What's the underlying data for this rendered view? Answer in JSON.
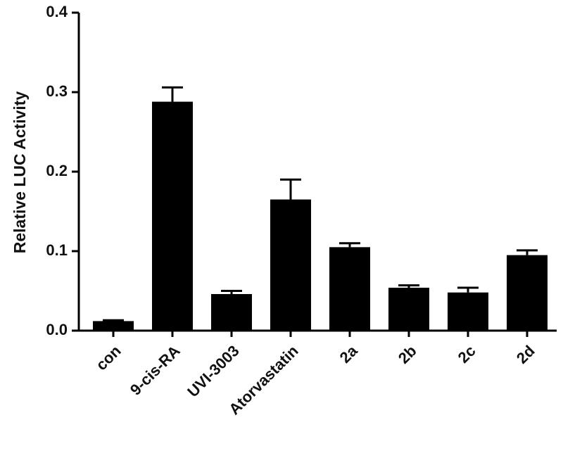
{
  "chart_data": {
    "type": "bar",
    "y_label": "Relative LUC Activity",
    "categories": [
      "con",
      "9-cis-RA",
      "UVI-3003",
      "Atorvastatin",
      "2a",
      "2b",
      "2c",
      "2d"
    ],
    "values": [
      0.012,
      0.288,
      0.046,
      0.165,
      0.105,
      0.054,
      0.048,
      0.095
    ],
    "errors": [
      0.001,
      0.018,
      0.004,
      0.025,
      0.005,
      0.003,
      0.006,
      0.006
    ],
    "color": "#000000",
    "ylim": [
      0,
      0.4
    ],
    "yticks": [
      {
        "value": 0,
        "label": "0.0"
      },
      0.1,
      0.2,
      0.3,
      0.4
    ]
  }
}
